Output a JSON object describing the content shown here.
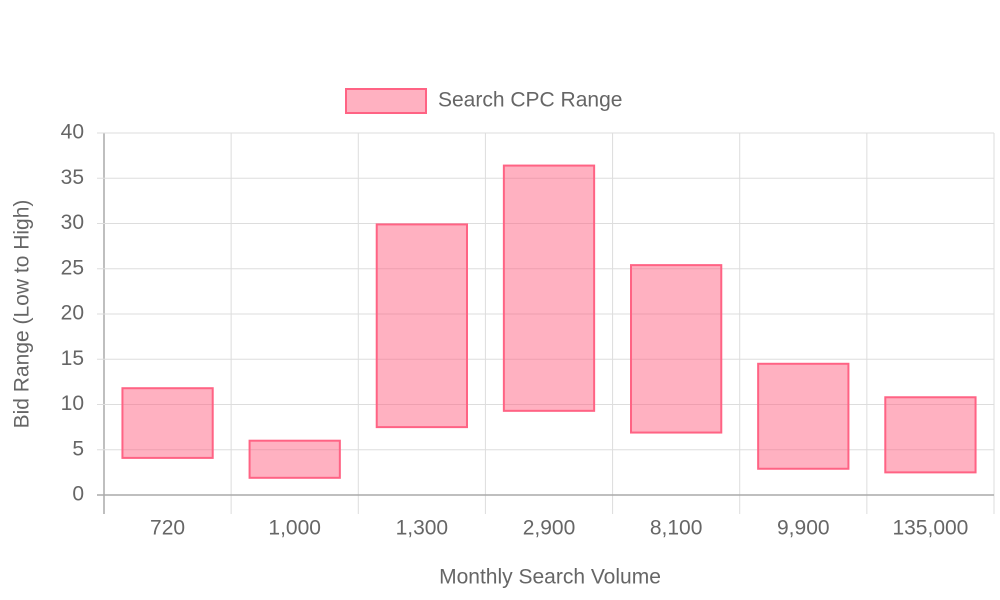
{
  "chart_data": {
    "type": "bar",
    "x_label": "Monthly Search Volume",
    "y_label": "Bid Range (Low to High)",
    "categories": [
      "720",
      "1,000",
      "1,300",
      "2,900",
      "8,100",
      "9,900",
      "135,000"
    ],
    "series": [
      {
        "name": "Search CPC Range",
        "color": "#ff6384",
        "low": [
          4.1,
          1.9,
          7.5,
          9.3,
          6.9,
          2.9,
          2.5
        ],
        "high": [
          11.8,
          6.0,
          29.9,
          36.4,
          25.4,
          14.5,
          10.8
        ]
      }
    ],
    "ylim": [
      0,
      40
    ],
    "yticks": [
      0,
      5,
      10,
      15,
      20,
      25,
      30,
      35,
      40
    ],
    "grid": true,
    "legend": "top"
  }
}
